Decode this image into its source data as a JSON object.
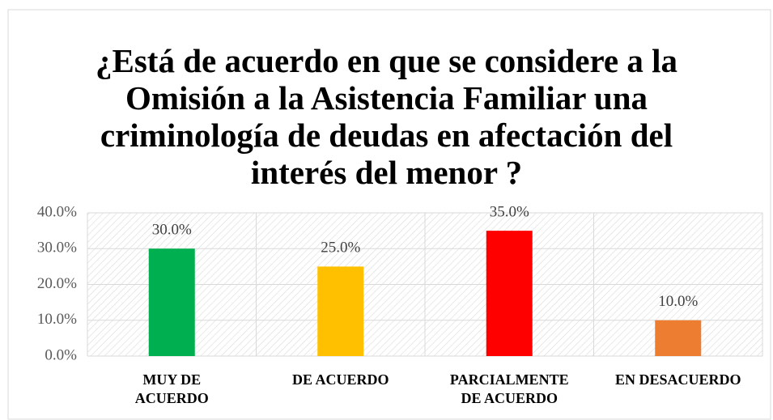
{
  "chart_data": {
    "type": "bar",
    "title": "¿Está de acuerdo en que se considere a la\nOmisión a la Asistencia Familiar una\ncriminología de deudas en afectación del\ninterés del menor ?",
    "categories": [
      "MUY DE\nACUERDO",
      "DE ACUERDO",
      "PARCIALMENTE\nDE ACUERDO",
      "EN DESACUERDO"
    ],
    "values": [
      30,
      25,
      35,
      10
    ],
    "value_labels": [
      "30.0%",
      "25.0%",
      "35.0%",
      "10.0%"
    ],
    "colors": [
      "#00b050",
      "#ffc000",
      "#ff0000",
      "#ed7d31"
    ],
    "ylim": [
      0,
      40
    ],
    "yticks": [
      {
        "value": 0,
        "label": "0.0%"
      },
      {
        "value": 10,
        "label": "10.0%"
      },
      {
        "value": 20,
        "label": "20.0%"
      },
      {
        "value": 30,
        "label": "30.0%"
      },
      {
        "value": 40,
        "label": "40.0%"
      }
    ],
    "grid": true
  }
}
